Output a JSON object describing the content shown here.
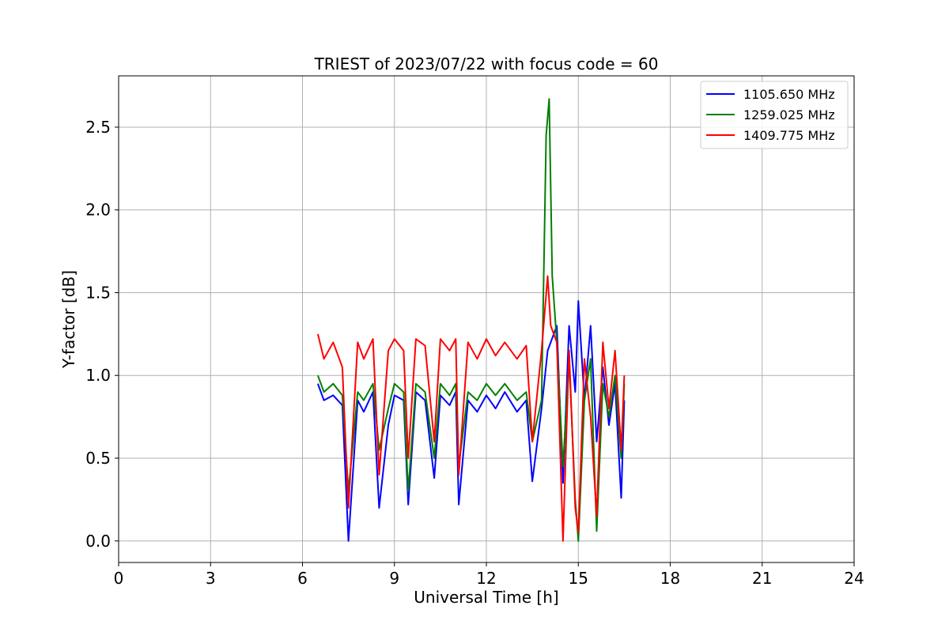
{
  "chart_data": {
    "type": "line",
    "title": "TRIEST of 2023/07/22 with focus code = 60",
    "xlabel": "Universal Time [h]",
    "ylabel": "Y-factor [dB]",
    "xlim": [
      0,
      24
    ],
    "ylim": [
      -0.13,
      2.81
    ],
    "xticks": [
      0,
      3,
      6,
      9,
      12,
      15,
      18,
      21,
      24
    ],
    "xtick_labels": [
      "0",
      "3",
      "6",
      "9",
      "12",
      "15",
      "18",
      "21",
      "24"
    ],
    "yticks": [
      0.0,
      0.5,
      1.0,
      1.5,
      2.0,
      2.5
    ],
    "ytick_labels": [
      "0.0",
      "0.5",
      "1.0",
      "1.5",
      "2.0",
      "2.5"
    ],
    "grid": true,
    "legend_position": "top-right",
    "series": [
      {
        "name": "1105.650 MHz",
        "color": "#0000ff",
        "x": [
          6.5,
          6.7,
          7.0,
          7.3,
          7.5,
          7.8,
          8.0,
          8.3,
          8.5,
          8.8,
          9.0,
          9.3,
          9.45,
          9.7,
          10.0,
          10.3,
          10.5,
          10.8,
          11.0,
          11.1,
          11.4,
          11.7,
          12.0,
          12.3,
          12.6,
          13.0,
          13.3,
          13.5,
          13.8,
          14.0,
          14.3,
          14.5,
          14.7,
          14.9,
          15.0,
          15.2,
          15.4,
          15.6,
          15.8,
          16.0,
          16.2,
          16.4,
          16.5
        ],
        "y": [
          0.95,
          0.85,
          0.88,
          0.82,
          0.0,
          0.85,
          0.78,
          0.9,
          0.2,
          0.7,
          0.88,
          0.85,
          0.22,
          0.9,
          0.85,
          0.38,
          0.88,
          0.82,
          0.9,
          0.22,
          0.85,
          0.78,
          0.88,
          0.8,
          0.9,
          0.78,
          0.85,
          0.36,
          0.8,
          1.15,
          1.3,
          0.35,
          1.3,
          0.9,
          1.45,
          0.85,
          1.3,
          0.6,
          1.05,
          0.7,
          0.95,
          0.26,
          0.85
        ]
      },
      {
        "name": "1259.025 MHz",
        "color": "#008000",
        "x": [
          6.5,
          6.7,
          7.0,
          7.3,
          7.5,
          7.8,
          8.0,
          8.3,
          8.5,
          8.8,
          9.0,
          9.3,
          9.45,
          9.7,
          10.0,
          10.3,
          10.5,
          10.8,
          11.0,
          11.1,
          11.4,
          11.7,
          12.0,
          12.3,
          12.6,
          13.0,
          13.3,
          13.5,
          13.8,
          13.95,
          14.05,
          14.15,
          14.3,
          14.5,
          14.7,
          14.9,
          15.0,
          15.2,
          15.4,
          15.6,
          15.8,
          16.0,
          16.2,
          16.4,
          16.5
        ],
        "y": [
          1.0,
          0.9,
          0.95,
          0.88,
          0.3,
          0.9,
          0.85,
          0.95,
          0.55,
          0.8,
          0.95,
          0.9,
          0.3,
          0.95,
          0.9,
          0.5,
          0.95,
          0.88,
          0.95,
          0.45,
          0.9,
          0.85,
          0.95,
          0.88,
          0.95,
          0.85,
          0.9,
          0.6,
          0.85,
          2.45,
          2.67,
          1.6,
          1.2,
          0.45,
          1.1,
          0.25,
          0.0,
          0.85,
          1.1,
          0.06,
          0.95,
          0.75,
          1.0,
          0.5,
          0.95
        ]
      },
      {
        "name": "1409.775 MHz",
        "color": "#ff0000",
        "x": [
          6.5,
          6.7,
          7.0,
          7.3,
          7.5,
          7.8,
          8.0,
          8.3,
          8.5,
          8.8,
          9.0,
          9.3,
          9.45,
          9.7,
          10.0,
          10.3,
          10.5,
          10.8,
          11.0,
          11.1,
          11.4,
          11.7,
          12.0,
          12.3,
          12.6,
          13.0,
          13.3,
          13.5,
          13.8,
          14.0,
          14.1,
          14.3,
          14.5,
          14.7,
          14.9,
          15.0,
          15.2,
          15.4,
          15.6,
          15.8,
          16.0,
          16.2,
          16.4,
          16.5
        ],
        "y": [
          1.25,
          1.1,
          1.2,
          1.05,
          0.2,
          1.2,
          1.1,
          1.22,
          0.4,
          1.15,
          1.22,
          1.15,
          0.5,
          1.22,
          1.18,
          0.6,
          1.22,
          1.15,
          1.22,
          0.4,
          1.2,
          1.1,
          1.22,
          1.12,
          1.2,
          1.1,
          1.18,
          0.6,
          1.15,
          1.6,
          1.3,
          1.2,
          0.0,
          1.15,
          0.2,
          0.05,
          1.1,
          0.75,
          0.15,
          1.2,
          0.8,
          1.15,
          0.55,
          1.0
        ]
      }
    ]
  }
}
